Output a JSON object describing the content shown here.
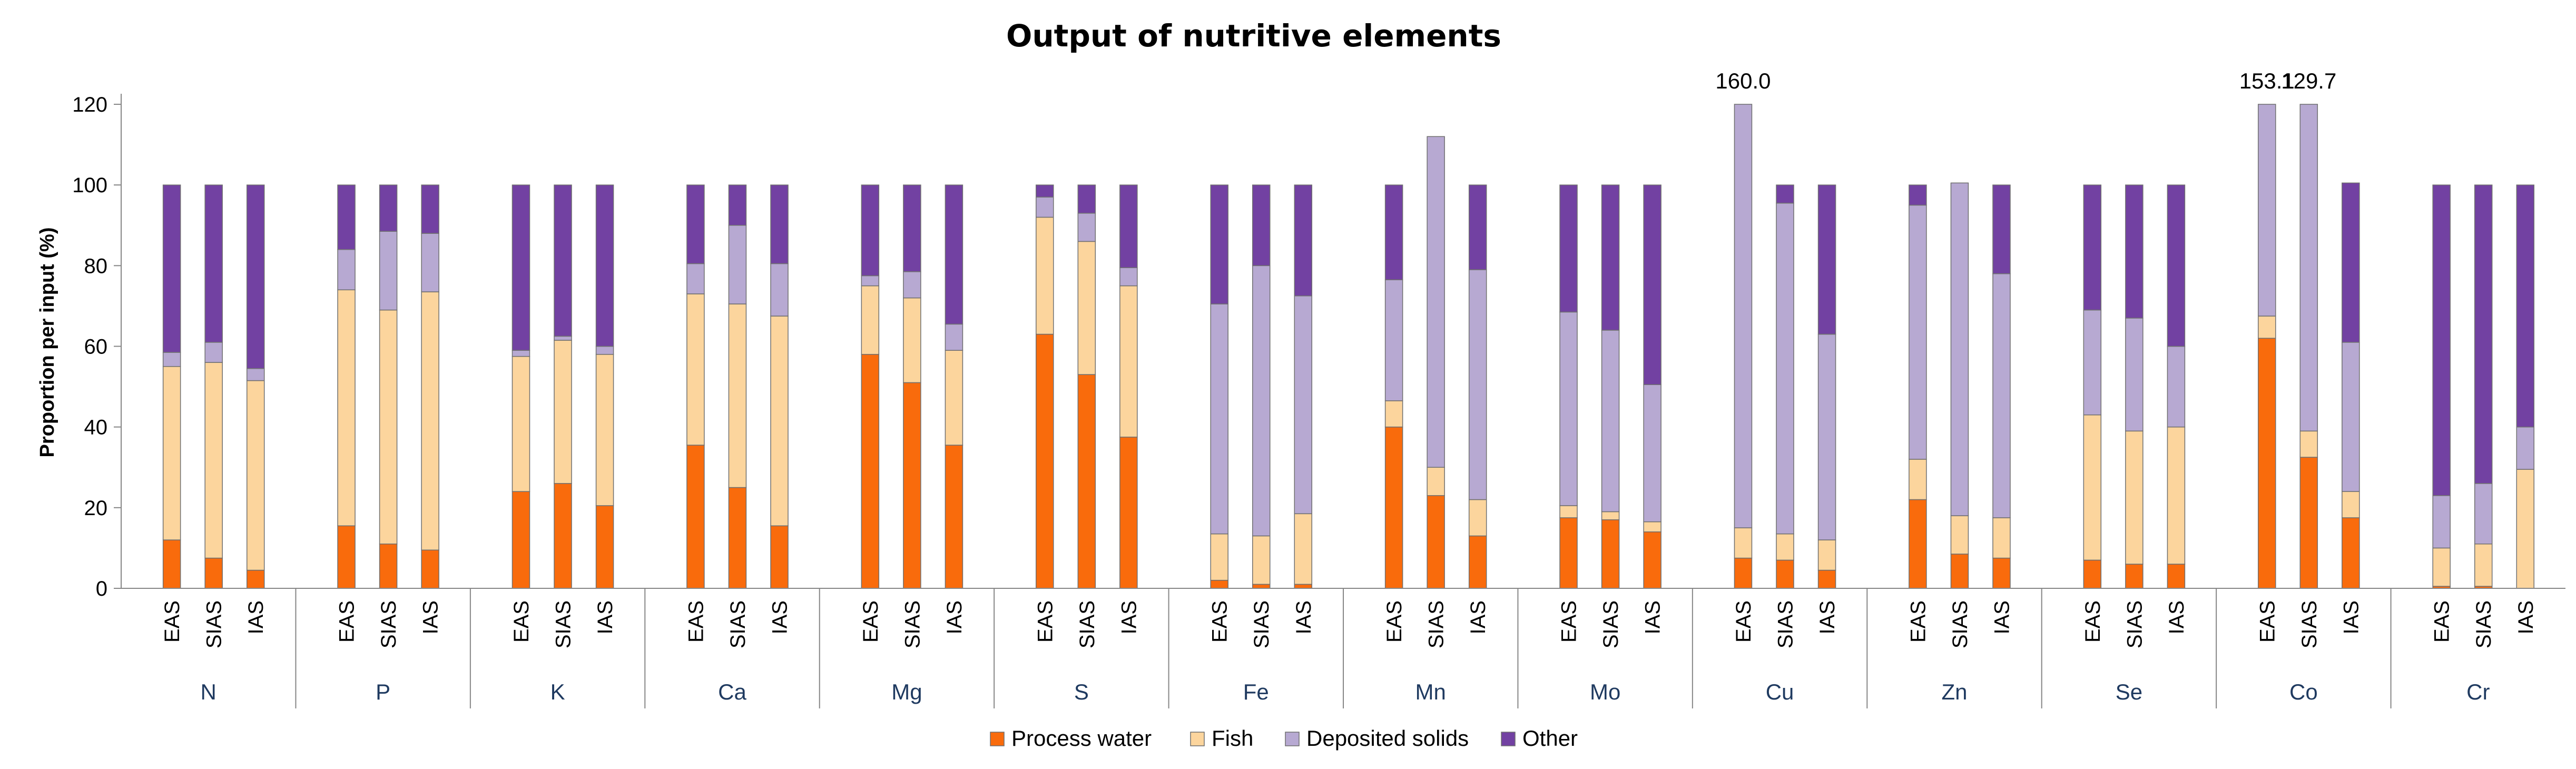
{
  "chart_data": {
    "type": "bar",
    "stacked": true,
    "title": "Output of nutritive elements",
    "ylabel": "Proportion per input (%)",
    "xlabel": "",
    "ylim": [
      0,
      120
    ],
    "yticks": [
      0,
      20,
      40,
      60,
      80,
      100,
      120
    ],
    "grid": false,
    "legend_position": "bottom",
    "groups": [
      "N",
      "P",
      "K",
      "Ca",
      "Mg",
      "S",
      "Fe",
      "Mn",
      "Mo",
      "Cu",
      "Zn",
      "Se",
      "Co",
      "Cr"
    ],
    "subcategories": [
      "EAS",
      "SIAS",
      "IAS"
    ],
    "series": [
      {
        "name": "Process water",
        "color": "#f96b0c",
        "values": [
          [
            12,
            7.5,
            4.5
          ],
          [
            15.5,
            11,
            9.5
          ],
          [
            24,
            26,
            20.5
          ],
          [
            35.5,
            25,
            15.5
          ],
          [
            58,
            51,
            35.5
          ],
          [
            63,
            53,
            37.5
          ],
          [
            2,
            1,
            1
          ],
          [
            40,
            23,
            13
          ],
          [
            17.5,
            17,
            14
          ],
          [
            7.5,
            7,
            4.5
          ],
          [
            22,
            8.5,
            7.5
          ],
          [
            7,
            6,
            6
          ],
          [
            62,
            32.5,
            17.5
          ],
          [
            0.5,
            0.5,
            0
          ]
        ]
      },
      {
        "name": "Fish",
        "color": "#fcd59d",
        "values": [
          [
            43,
            48.5,
            47
          ],
          [
            58.5,
            58,
            64
          ],
          [
            33.5,
            35.5,
            37.5
          ],
          [
            37.5,
            45.5,
            52
          ],
          [
            17,
            21,
            23.5
          ],
          [
            29,
            33,
            37.5
          ],
          [
            11.5,
            12,
            17.5
          ],
          [
            6.5,
            7,
            9
          ],
          [
            3,
            2,
            2.5
          ],
          [
            7.5,
            6.5,
            7.5
          ],
          [
            10,
            9.5,
            10
          ],
          [
            36,
            33,
            34
          ],
          [
            5.5,
            6.5,
            6.5
          ],
          [
            9.5,
            10.5,
            29.5
          ]
        ]
      },
      {
        "name": "Deposited solids",
        "color": "#b7a9d2",
        "values": [
          [
            3.5,
            5,
            3
          ],
          [
            10,
            19.5,
            14.5
          ],
          [
            1.5,
            1,
            2
          ],
          [
            7.5,
            19.5,
            13
          ],
          [
            2.5,
            6.5,
            6.5
          ],
          [
            5,
            7,
            4.5
          ],
          [
            57,
            67,
            54
          ],
          [
            30,
            82,
            57
          ],
          [
            48,
            45,
            34
          ],
          [
            145,
            82,
            51
          ],
          [
            63,
            82.5,
            60.5
          ],
          [
            26,
            28,
            20
          ],
          [
            85.6,
            90.7,
            37
          ],
          [
            13,
            15,
            10.5
          ]
        ]
      },
      {
        "name": "Other",
        "color": "#7241a2",
        "values": [
          [
            41.5,
            39,
            45.5
          ],
          [
            16,
            11.5,
            12
          ],
          [
            41,
            37.5,
            40
          ],
          [
            19.5,
            10,
            19.5
          ],
          [
            22.5,
            21.5,
            34.5
          ],
          [
            3,
            7,
            20.5
          ],
          [
            29.5,
            20,
            27.5
          ],
          [
            23.5,
            0,
            21
          ],
          [
            31.5,
            36,
            49.5
          ],
          [
            0,
            4.5,
            37
          ],
          [
            5,
            0,
            22
          ],
          [
            31,
            33,
            40
          ],
          [
            0,
            0,
            39.5
          ],
          [
            77,
            74,
            60
          ]
        ]
      }
    ],
    "annotations": [
      {
        "group": "Cu",
        "subcategory": "EAS",
        "text": "160.0"
      },
      {
        "group": "Co",
        "subcategory": "EAS",
        "text": "153.1"
      },
      {
        "group": "Co",
        "subcategory": "SIAS",
        "text": "129.7"
      }
    ]
  }
}
